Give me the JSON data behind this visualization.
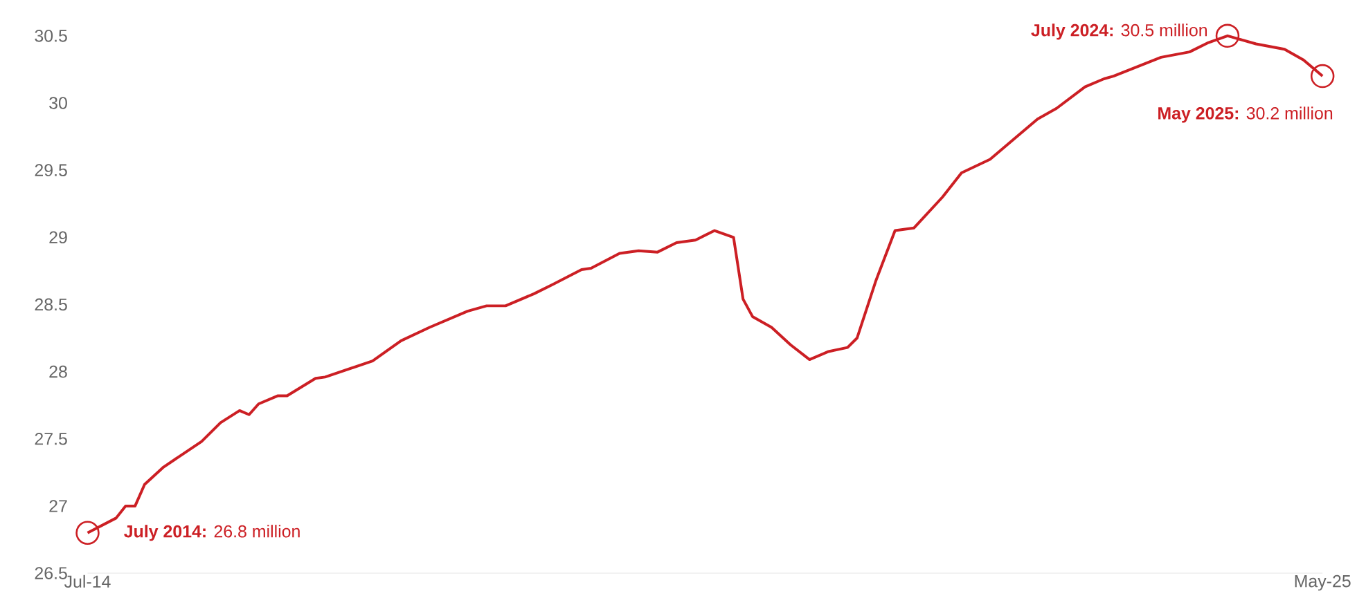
{
  "chart_data": {
    "type": "line",
    "x": [
      "2014-07",
      "2014-10",
      "2014-11",
      "2014-12",
      "2015-01",
      "2015-03",
      "2015-07",
      "2015-09",
      "2015-11",
      "2015-12",
      "2016-01",
      "2016-03",
      "2016-04",
      "2016-07",
      "2016-08",
      "2017-01",
      "2017-04",
      "2017-07",
      "2017-11",
      "2018-01",
      "2018-03",
      "2018-06",
      "2018-08",
      "2018-11",
      "2018-12",
      "2019-03",
      "2019-05",
      "2019-07",
      "2019-09",
      "2019-11",
      "2020-01",
      "2020-03",
      "2020-04",
      "2020-05",
      "2020-07",
      "2020-09",
      "2020-11",
      "2021-01",
      "2021-03",
      "2021-04",
      "2021-06",
      "2021-08",
      "2021-10",
      "2022-01",
      "2022-03",
      "2022-06",
      "2022-09",
      "2022-11",
      "2023-01",
      "2023-04",
      "2023-06",
      "2023-07",
      "2023-12",
      "2024-03",
      "2024-05",
      "2024-07",
      "2024-10",
      "2025-01",
      "2025-03",
      "2025-05"
    ],
    "series": [
      {
        "color": "#cc1f24",
        "values": [
          26.8,
          26.91,
          27.0,
          27.0,
          27.16,
          27.29,
          27.48,
          27.62,
          27.71,
          27.68,
          27.76,
          27.82,
          27.82,
          27.95,
          27.96,
          28.08,
          28.23,
          28.33,
          28.45,
          28.49,
          28.49,
          28.58,
          28.65,
          28.76,
          28.77,
          28.88,
          28.9,
          28.89,
          28.96,
          28.98,
          29.05,
          29.0,
          28.54,
          28.41,
          28.33,
          28.2,
          28.09,
          28.15,
          28.18,
          28.25,
          28.68,
          29.05,
          29.07,
          29.3,
          29.48,
          29.58,
          29.76,
          29.88,
          29.96,
          30.12,
          30.18,
          30.2,
          30.34,
          30.38,
          30.45,
          30.5,
          30.44,
          30.4,
          30.32,
          30.2
        ]
      }
    ],
    "xlim": [
      "2014-07",
      "2025-05"
    ],
    "xticks": [
      {
        "value": "2014-07",
        "label": "Jul-14"
      },
      {
        "value": "2025-05",
        "label": "May-25"
      }
    ],
    "ylim": [
      26.5,
      30.5
    ],
    "yticks": [
      26.5,
      27,
      27.5,
      28,
      28.5,
      29,
      29.5,
      30,
      30.5
    ],
    "annotations": [
      {
        "text": "**July 2014:** 26.8 million",
        "x": "2014-07",
        "y": 26.8
      },
      {
        "text": "**July 2024:** 30.5 million",
        "x": "2024-07",
        "y": 30.5
      },
      {
        "text": "**May 2025:** 30.2 million",
        "x": "2025-05",
        "y": 30.2
      }
    ]
  }
}
